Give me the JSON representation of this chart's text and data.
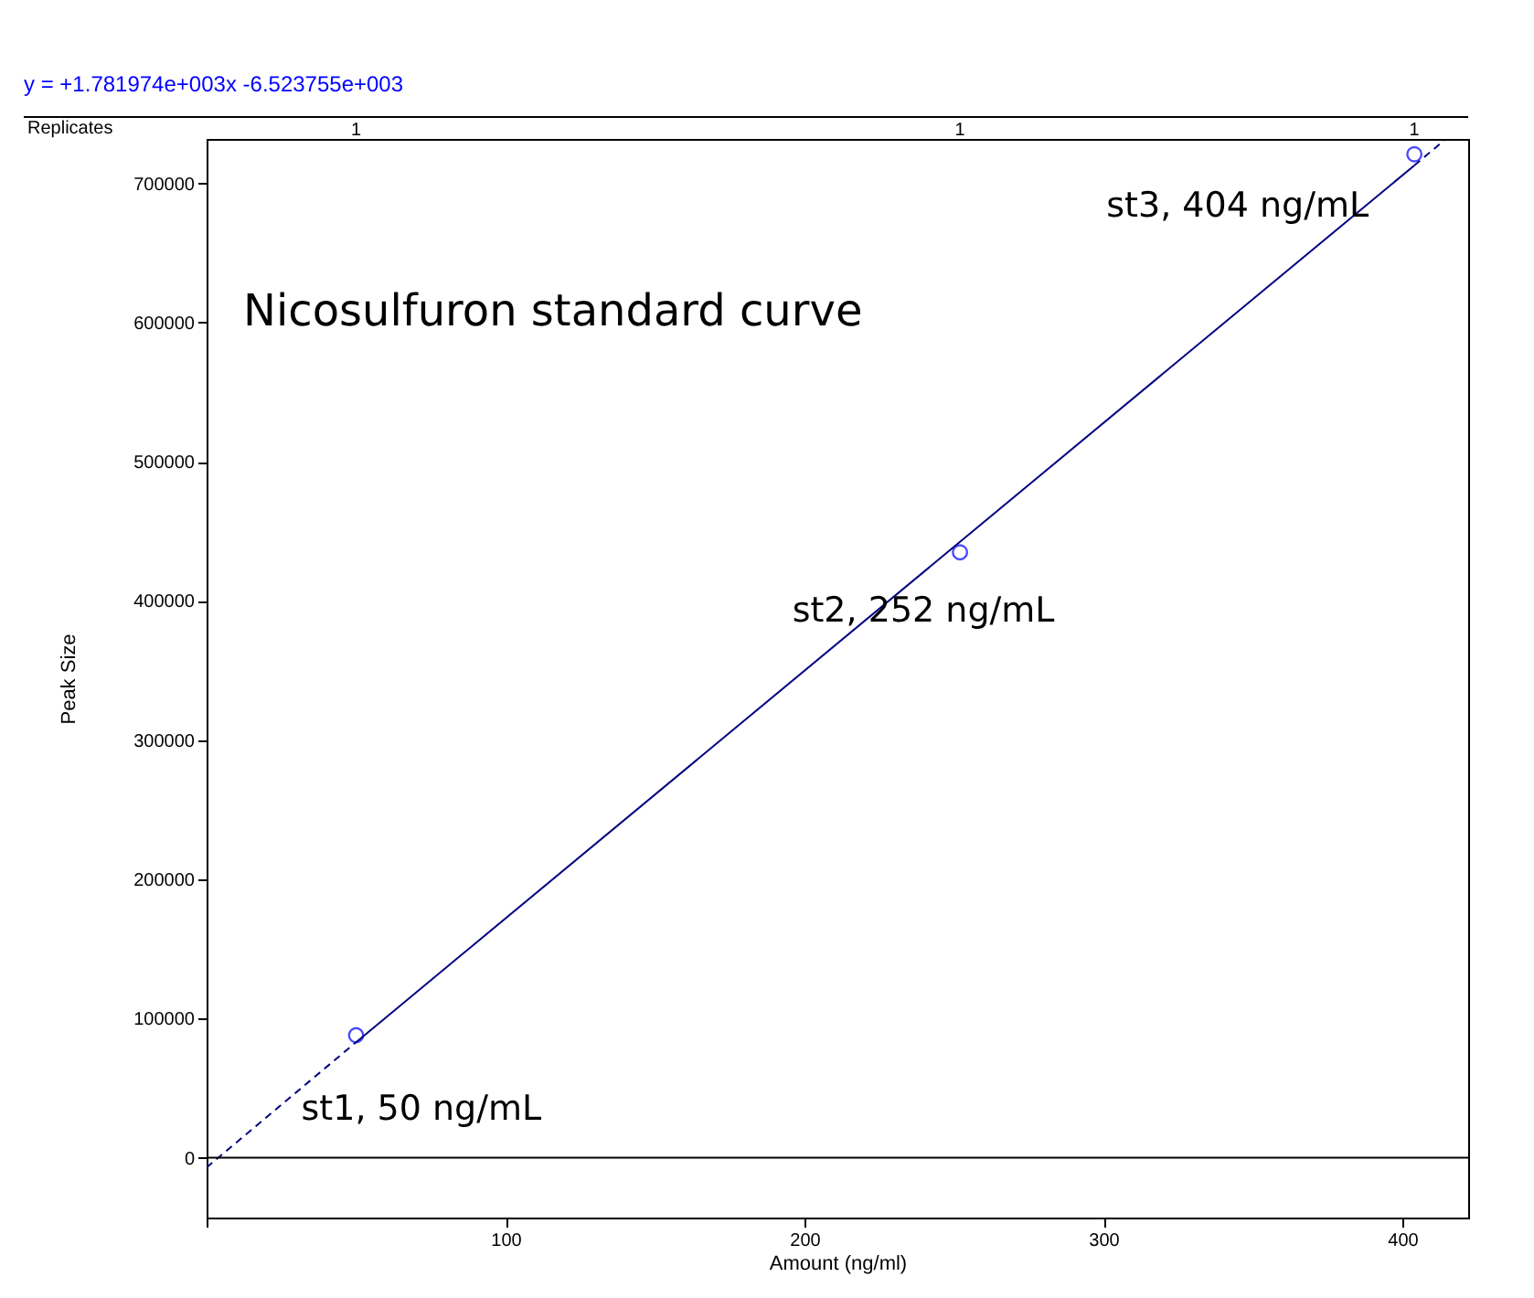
{
  "chart_data": {
    "type": "scatter",
    "xlabel": "Amount (ng/ml)",
    "ylabel": "Peak Size",
    "xlim": [
      0,
      422
    ],
    "ylim": [
      -43000,
      732000
    ],
    "xticks": [
      {
        "value": 0,
        "label": null
      },
      100,
      200,
      300,
      400
    ],
    "yticks": [
      0,
      100000,
      200000,
      300000,
      400000,
      500000,
      600000,
      700000
    ],
    "grid": false,
    "marker": "circle",
    "ref_lines": [
      {
        "axis": "y",
        "value": 0,
        "color": "#000000"
      }
    ],
    "series": [
      {
        "color": "#0000ff",
        "x": [
          50,
          252,
          404
        ],
        "values": [
          88000,
          435000,
          721000
        ]
      },
      {
        "type": "line",
        "color": "#000080",
        "line_style": "solid",
        "marker": "none",
        "x": [
          50,
          404
        ],
        "values": [
          83000,
          713000
        ]
      },
      {
        "type": "line",
        "color": "#000080",
        "line_style": "dashed",
        "marker": "none",
        "x": [
          0,
          50
        ],
        "values": [
          -7000,
          83000
        ]
      },
      {
        "type": "line",
        "color": "#000080",
        "line_style": "dashed",
        "marker": "none",
        "x": [
          404,
          414
        ],
        "values": [
          713000,
          731000
        ]
      }
    ],
    "annotations": [
      "y = +1.781974e+003x -6.523755e+003",
      "Nicosulfuron standard curve",
      "Replicates",
      "1",
      "1",
      "1",
      {
        "text": "st1, 50 ng/mL",
        "x": 50,
        "y": 88000
      },
      {
        "text": "st2, 252 ng/mL",
        "x": 252,
        "y": 435000
      },
      {
        "text": "st3, 404 ng/mL",
        "x": 404,
        "y": 721000
      }
    ]
  }
}
